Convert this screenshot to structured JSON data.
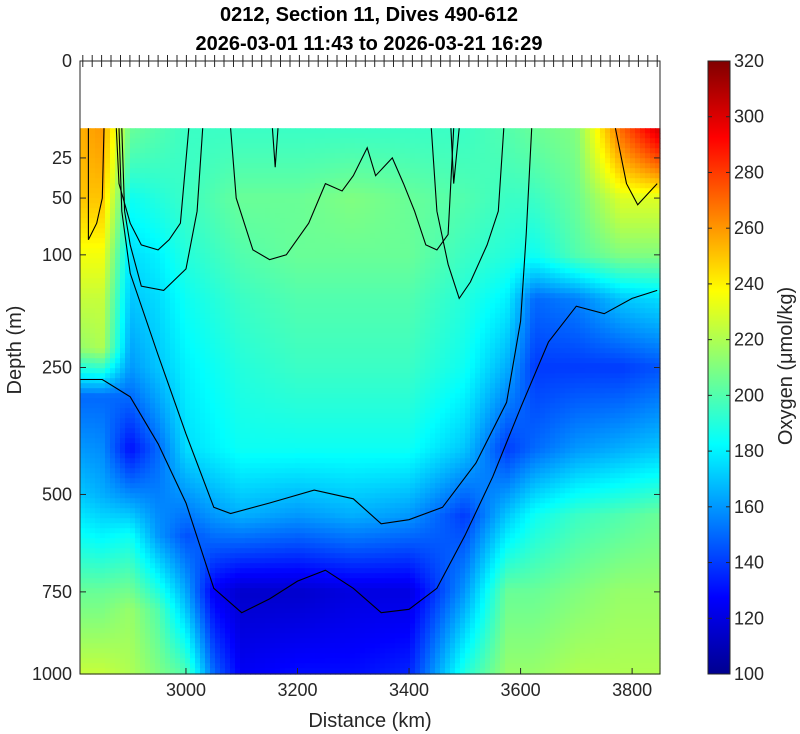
{
  "chart_data": {
    "type": "heatmap",
    "title": [
      "0212, Section 11, Dives 490-612",
      "2026-03-01 11:43 to 2026-03-21 16:29"
    ],
    "xlabel": "Distance (km)",
    "ylabel": "Depth (m)",
    "colorbar_label": "Oxygen (μmol/kg)",
    "xlim": [
      2810,
      3850
    ],
    "x_ticks": [
      3000,
      3200,
      3400,
      3600,
      3800
    ],
    "ylim": [
      0,
      1000
    ],
    "y_ticks": [
      0,
      25,
      50,
      100,
      250,
      500,
      750,
      1000
    ],
    "y_scale": "sqrt",
    "data_top_depth": 12,
    "clim": [
      100,
      320
    ],
    "c_ticks": [
      100,
      120,
      140,
      160,
      180,
      200,
      220,
      240,
      260,
      280,
      300,
      320
    ],
    "colormap": "jet",
    "colormap_stops": [
      "#00008f",
      "#0000ff",
      "#0080ff",
      "#00ffff",
      "#80ff80",
      "#ffff00",
      "#ff8000",
      "#ff0000",
      "#800000"
    ],
    "dive_ticks_x_range": [
      2815,
      3845
    ],
    "dive_tick_count": 62,
    "profile_columns": [
      {
        "x": 2815,
        "values": [
          [
            12,
            255
          ],
          [
            50,
            250
          ],
          [
            100,
            235
          ],
          [
            150,
            225
          ],
          [
            220,
            215
          ],
          [
            300,
            150
          ],
          [
            500,
            170
          ],
          [
            750,
            205
          ],
          [
            1000,
            225
          ]
        ]
      },
      {
        "x": 2850,
        "values": [
          [
            12,
            260
          ],
          [
            50,
            250
          ],
          [
            100,
            235
          ],
          [
            150,
            225
          ],
          [
            220,
            220
          ],
          [
            300,
            150
          ],
          [
            500,
            165
          ],
          [
            750,
            205
          ],
          [
            1000,
            225
          ]
        ]
      },
      {
        "x": 2900,
        "values": [
          [
            12,
            205
          ],
          [
            50,
            185
          ],
          [
            100,
            175
          ],
          [
            150,
            170
          ],
          [
            250,
            160
          ],
          [
            400,
            130
          ],
          [
            600,
            185
          ],
          [
            800,
            215
          ],
          [
            1000,
            220
          ]
        ]
      },
      {
        "x": 2950,
        "values": [
          [
            12,
            200
          ],
          [
            50,
            190
          ],
          [
            100,
            180
          ],
          [
            150,
            175
          ],
          [
            250,
            170
          ],
          [
            400,
            150
          ],
          [
            600,
            160
          ],
          [
            800,
            200
          ],
          [
            1000,
            210
          ]
        ]
      },
      {
        "x": 3000,
        "values": [
          [
            12,
            195
          ],
          [
            50,
            195
          ],
          [
            100,
            190
          ],
          [
            150,
            185
          ],
          [
            250,
            180
          ],
          [
            400,
            175
          ],
          [
            600,
            145
          ],
          [
            800,
            170
          ],
          [
            1000,
            200
          ]
        ]
      },
      {
        "x": 3050,
        "values": [
          [
            12,
            195
          ],
          [
            50,
            200
          ],
          [
            100,
            195
          ],
          [
            150,
            190
          ],
          [
            250,
            185
          ],
          [
            400,
            180
          ],
          [
            550,
            160
          ],
          [
            750,
            125
          ],
          [
            1000,
            150
          ]
        ]
      },
      {
        "x": 3100,
        "values": [
          [
            12,
            195
          ],
          [
            50,
            205
          ],
          [
            100,
            200
          ],
          [
            150,
            195
          ],
          [
            250,
            190
          ],
          [
            400,
            185
          ],
          [
            550,
            165
          ],
          [
            750,
            115
          ],
          [
            1000,
            125
          ]
        ]
      },
      {
        "x": 3200,
        "values": [
          [
            12,
            195
          ],
          [
            50,
            205
          ],
          [
            100,
            205
          ],
          [
            150,
            200
          ],
          [
            250,
            195
          ],
          [
            400,
            185
          ],
          [
            550,
            160
          ],
          [
            750,
            115
          ],
          [
            1000,
            130
          ]
        ]
      },
      {
        "x": 3300,
        "values": [
          [
            12,
            195
          ],
          [
            50,
            210
          ],
          [
            100,
            205
          ],
          [
            150,
            200
          ],
          [
            250,
            195
          ],
          [
            400,
            185
          ],
          [
            550,
            165
          ],
          [
            750,
            120
          ],
          [
            1000,
            130
          ]
        ]
      },
      {
        "x": 3400,
        "values": [
          [
            12,
            195
          ],
          [
            50,
            205
          ],
          [
            100,
            205
          ],
          [
            150,
            200
          ],
          [
            250,
            195
          ],
          [
            400,
            185
          ],
          [
            550,
            160
          ],
          [
            750,
            120
          ],
          [
            1000,
            135
          ]
        ]
      },
      {
        "x": 3500,
        "values": [
          [
            12,
            195
          ],
          [
            50,
            200
          ],
          [
            100,
            195
          ],
          [
            150,
            190
          ],
          [
            250,
            185
          ],
          [
            400,
            170
          ],
          [
            550,
            140
          ],
          [
            750,
            160
          ],
          [
            1000,
            190
          ]
        ]
      },
      {
        "x": 3575,
        "values": [
          [
            12,
            200
          ],
          [
            50,
            195
          ],
          [
            100,
            190
          ],
          [
            150,
            180
          ],
          [
            250,
            165
          ],
          [
            400,
            140
          ],
          [
            550,
            170
          ],
          [
            750,
            205
          ],
          [
            1000,
            215
          ]
        ]
      },
      {
        "x": 3625,
        "values": [
          [
            12,
            205
          ],
          [
            50,
            195
          ],
          [
            100,
            185
          ],
          [
            150,
            150
          ],
          [
            250,
            140
          ],
          [
            400,
            150
          ],
          [
            550,
            185
          ],
          [
            750,
            205
          ],
          [
            1000,
            215
          ]
        ]
      },
      {
        "x": 3700,
        "values": [
          [
            12,
            210
          ],
          [
            50,
            205
          ],
          [
            100,
            200
          ],
          [
            150,
            155
          ],
          [
            250,
            140
          ],
          [
            400,
            160
          ],
          [
            550,
            195
          ],
          [
            750,
            210
          ],
          [
            1000,
            220
          ]
        ]
      },
      {
        "x": 3780,
        "values": [
          [
            12,
            270
          ],
          [
            50,
            230
          ],
          [
            100,
            210
          ],
          [
            150,
            170
          ],
          [
            250,
            140
          ],
          [
            400,
            165
          ],
          [
            550,
            200
          ],
          [
            750,
            215
          ],
          [
            1000,
            220
          ]
        ]
      },
      {
        "x": 3845,
        "values": [
          [
            12,
            300
          ],
          [
            50,
            230
          ],
          [
            100,
            210
          ],
          [
            150,
            175
          ],
          [
            250,
            145
          ],
          [
            400,
            170
          ],
          [
            550,
            205
          ],
          [
            750,
            215
          ],
          [
            1000,
            220
          ]
        ]
      }
    ],
    "contours": [
      {
        "points": [
          [
            2825,
            12
          ],
          [
            2825,
            85
          ],
          [
            2840,
            70
          ],
          [
            2850,
            50
          ],
          [
            2853,
            12
          ]
        ]
      },
      {
        "points": [
          [
            2875,
            12
          ],
          [
            2880,
            40
          ],
          [
            2900,
            70
          ],
          [
            2920,
            90
          ],
          [
            2950,
            95
          ],
          [
            2970,
            85
          ],
          [
            2990,
            70
          ],
          [
            3005,
            12
          ]
        ]
      },
      {
        "points": [
          [
            2885,
            12
          ],
          [
            2890,
            60
          ],
          [
            2900,
            90
          ],
          [
            2920,
            135
          ],
          [
            2960,
            140
          ],
          [
            3000,
            115
          ],
          [
            3020,
            60
          ],
          [
            3030,
            12
          ]
        ]
      },
      {
        "points": [
          [
            2880,
            12
          ],
          [
            2885,
            60
          ],
          [
            2900,
            120
          ],
          [
            2950,
            230
          ],
          [
            3000,
            370
          ],
          [
            3050,
            530
          ],
          [
            3080,
            545
          ],
          [
            3150,
            520
          ],
          [
            3230,
            490
          ],
          [
            3300,
            510
          ],
          [
            3350,
            570
          ],
          [
            3400,
            560
          ],
          [
            3460,
            530
          ],
          [
            3520,
            430
          ],
          [
            3575,
            310
          ],
          [
            3600,
            180
          ],
          [
            3610,
            80
          ],
          [
            3620,
            12
          ]
        ]
      },
      {
        "points": [
          [
            2810,
            270
          ],
          [
            2850,
            270
          ],
          [
            2900,
            300
          ],
          [
            2950,
            390
          ],
          [
            3000,
            520
          ],
          [
            3050,
            740
          ],
          [
            3100,
            810
          ],
          [
            3150,
            770
          ],
          [
            3200,
            720
          ],
          [
            3250,
            690
          ],
          [
            3300,
            740
          ],
          [
            3350,
            810
          ],
          [
            3400,
            800
          ],
          [
            3450,
            740
          ],
          [
            3500,
            600
          ],
          [
            3550,
            460
          ],
          [
            3600,
            320
          ],
          [
            3650,
            210
          ],
          [
            3700,
            160
          ],
          [
            3750,
            170
          ],
          [
            3800,
            150
          ],
          [
            3845,
            140
          ]
        ]
      },
      {
        "points": [
          [
            3080,
            12
          ],
          [
            3090,
            50
          ],
          [
            3120,
            95
          ],
          [
            3150,
            105
          ],
          [
            3180,
            100
          ],
          [
            3220,
            70
          ],
          [
            3250,
            40
          ],
          [
            3280,
            45
          ],
          [
            3300,
            35
          ],
          [
            3325,
            20
          ],
          [
            3340,
            35
          ],
          [
            3370,
            25
          ],
          [
            3390,
            40
          ],
          [
            3410,
            60
          ],
          [
            3430,
            90
          ],
          [
            3450,
            95
          ],
          [
            3470,
            80
          ],
          [
            3480,
            12
          ]
        ]
      },
      {
        "points": [
          [
            3440,
            12
          ],
          [
            3450,
            60
          ],
          [
            3470,
            110
          ],
          [
            3490,
            150
          ],
          [
            3510,
            130
          ],
          [
            3540,
            90
          ],
          [
            3560,
            60
          ],
          [
            3570,
            12
          ]
        ]
      },
      {
        "points": [
          [
            3155,
            12
          ],
          [
            3160,
            30
          ],
          [
            3165,
            12
          ]
        ]
      },
      {
        "points": [
          [
            3475,
            12
          ],
          [
            3480,
            40
          ],
          [
            3490,
            12
          ]
        ]
      },
      {
        "points": [
          [
            3770,
            12
          ],
          [
            3790,
            40
          ],
          [
            3810,
            55
          ],
          [
            3845,
            40
          ]
        ]
      }
    ]
  }
}
